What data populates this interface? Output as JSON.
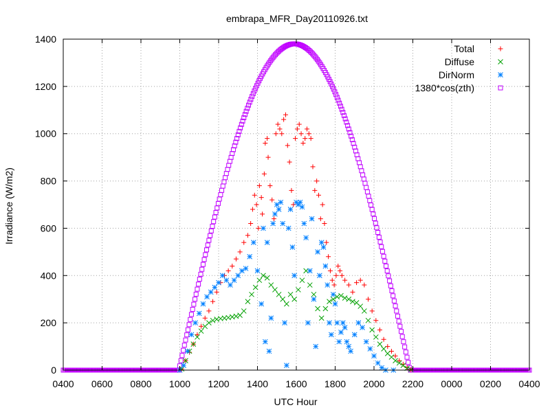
{
  "chart_data": {
    "type": "scatter",
    "title": "embrapa_MFR_Day20110926.txt",
    "xlabel": "UTC Hour",
    "ylabel": "Irradiance (W/m2)",
    "xlim": [
      0,
      24
    ],
    "ylim": [
      0,
      1400
    ],
    "x_ticks": [
      {
        "pos": 0,
        "label": "0400"
      },
      {
        "pos": 2,
        "label": "0600"
      },
      {
        "pos": 4,
        "label": "0800"
      },
      {
        "pos": 6,
        "label": "1000"
      },
      {
        "pos": 8,
        "label": "1200"
      },
      {
        "pos": 10,
        "label": "1400"
      },
      {
        "pos": 12,
        "label": "1600"
      },
      {
        "pos": 14,
        "label": "1800"
      },
      {
        "pos": 16,
        "label": "2000"
      },
      {
        "pos": 18,
        "label": "2200"
      },
      {
        "pos": 20,
        "label": "0000"
      },
      {
        "pos": 22,
        "label": "0200"
      },
      {
        "pos": 24,
        "label": "0400"
      }
    ],
    "y_ticks": [
      0,
      200,
      400,
      600,
      800,
      1000,
      1200,
      1400
    ],
    "grid": true,
    "legend_position": "top-right",
    "series": [
      {
        "name": "Total",
        "color": "#ff0000",
        "marker": "plus",
        "points": [
          [
            6.1,
            5
          ],
          [
            6.3,
            40
          ],
          [
            6.5,
            75
          ],
          [
            6.7,
            110
          ],
          [
            6.9,
            150
          ],
          [
            7.1,
            185
          ],
          [
            7.3,
            220
          ],
          [
            7.5,
            250
          ],
          [
            7.7,
            290
          ],
          [
            7.9,
            330
          ],
          [
            8.1,
            370
          ],
          [
            8.3,
            400
          ],
          [
            8.5,
            420
          ],
          [
            8.7,
            440
          ],
          [
            8.9,
            470
          ],
          [
            9.1,
            500
          ],
          [
            9.3,
            540
          ],
          [
            9.5,
            570
          ],
          [
            9.65,
            620
          ],
          [
            9.75,
            680
          ],
          [
            9.85,
            740
          ],
          [
            9.95,
            700
          ],
          [
            10.05,
            600
          ],
          [
            10.1,
            780
          ],
          [
            10.2,
            730
          ],
          [
            10.25,
            660
          ],
          [
            10.35,
            830
          ],
          [
            10.4,
            960
          ],
          [
            10.5,
            980
          ],
          [
            10.55,
            900
          ],
          [
            10.65,
            780
          ],
          [
            10.75,
            720
          ],
          [
            10.85,
            640
          ],
          [
            10.95,
            1000
          ],
          [
            11.05,
            1040
          ],
          [
            11.15,
            1020
          ],
          [
            11.25,
            1000
          ],
          [
            11.35,
            1060
          ],
          [
            11.45,
            1080
          ],
          [
            11.55,
            950
          ],
          [
            11.65,
            880
          ],
          [
            11.75,
            760
          ],
          [
            11.85,
            700
          ],
          [
            11.95,
            980
          ],
          [
            12.05,
            1020
          ],
          [
            12.15,
            1040
          ],
          [
            12.25,
            1000
          ],
          [
            12.35,
            960
          ],
          [
            12.45,
            980
          ],
          [
            12.55,
            1020
          ],
          [
            12.65,
            1000
          ],
          [
            12.75,
            980
          ],
          [
            12.85,
            860
          ],
          [
            12.95,
            760
          ],
          [
            13.05,
            800
          ],
          [
            13.15,
            740
          ],
          [
            13.25,
            640
          ],
          [
            13.35,
            700
          ],
          [
            13.45,
            620
          ],
          [
            13.55,
            540
          ],
          [
            13.65,
            480
          ],
          [
            13.75,
            420
          ],
          [
            13.85,
            380
          ],
          [
            13.95,
            360
          ],
          [
            14.05,
            400
          ],
          [
            14.15,
            440
          ],
          [
            14.25,
            420
          ],
          [
            14.35,
            400
          ],
          [
            14.5,
            380
          ],
          [
            14.7,
            360
          ],
          [
            14.9,
            330
          ],
          [
            15.1,
            370
          ],
          [
            15.3,
            380
          ],
          [
            15.5,
            360
          ],
          [
            15.7,
            300
          ],
          [
            15.9,
            250
          ],
          [
            16.1,
            210
          ],
          [
            16.3,
            170
          ],
          [
            16.5,
            130
          ],
          [
            16.7,
            100
          ],
          [
            16.9,
            80
          ],
          [
            17.1,
            60
          ],
          [
            17.3,
            40
          ],
          [
            17.5,
            25
          ],
          [
            17.7,
            10
          ],
          [
            17.9,
            2
          ]
        ]
      },
      {
        "name": "Diffuse",
        "color": "#00a000",
        "marker": "cross",
        "points": [
          [
            6.1,
            5
          ],
          [
            6.3,
            40
          ],
          [
            6.5,
            80
          ],
          [
            6.7,
            110
          ],
          [
            6.9,
            140
          ],
          [
            7.1,
            165
          ],
          [
            7.3,
            185
          ],
          [
            7.5,
            200
          ],
          [
            7.7,
            210
          ],
          [
            7.9,
            215
          ],
          [
            8.1,
            218
          ],
          [
            8.3,
            220
          ],
          [
            8.5,
            222
          ],
          [
            8.7,
            225
          ],
          [
            8.9,
            228
          ],
          [
            9.1,
            232
          ],
          [
            9.3,
            250
          ],
          [
            9.5,
            290
          ],
          [
            9.7,
            320
          ],
          [
            9.9,
            350
          ],
          [
            10.1,
            380
          ],
          [
            10.3,
            400
          ],
          [
            10.5,
            390
          ],
          [
            10.7,
            360
          ],
          [
            10.9,
            340
          ],
          [
            11.1,
            320
          ],
          [
            11.3,
            300
          ],
          [
            11.5,
            280
          ],
          [
            11.7,
            320
          ],
          [
            11.9,
            300
          ],
          [
            12.1,
            340
          ],
          [
            12.3,
            380
          ],
          [
            12.5,
            420
          ],
          [
            12.7,
            360
          ],
          [
            12.9,
            320
          ],
          [
            13.1,
            260
          ],
          [
            13.3,
            220
          ],
          [
            13.5,
            260
          ],
          [
            13.7,
            290
          ],
          [
            13.9,
            300
          ],
          [
            14.1,
            310
          ],
          [
            14.3,
            315
          ],
          [
            14.5,
            305
          ],
          [
            14.7,
            300
          ],
          [
            14.9,
            290
          ],
          [
            15.1,
            285
          ],
          [
            15.3,
            270
          ],
          [
            15.5,
            250
          ],
          [
            15.7,
            210
          ],
          [
            15.9,
            170
          ],
          [
            16.1,
            140
          ],
          [
            16.3,
            110
          ],
          [
            16.5,
            90
          ],
          [
            16.7,
            70
          ],
          [
            16.9,
            55
          ],
          [
            17.1,
            40
          ],
          [
            17.3,
            30
          ],
          [
            17.5,
            20
          ],
          [
            17.7,
            8
          ],
          [
            17.9,
            2
          ]
        ]
      },
      {
        "name": "DirNorm",
        "color": "#0080ff",
        "marker": "star",
        "points": [
          [
            6.0,
            0
          ],
          [
            6.2,
            20
          ],
          [
            6.4,
            80
          ],
          [
            6.6,
            150
          ],
          [
            6.8,
            200
          ],
          [
            7.0,
            240
          ],
          [
            7.2,
            280
          ],
          [
            7.4,
            310
          ],
          [
            7.6,
            330
          ],
          [
            7.8,
            350
          ],
          [
            8.0,
            370
          ],
          [
            8.2,
            400
          ],
          [
            8.4,
            380
          ],
          [
            8.6,
            360
          ],
          [
            8.8,
            380
          ],
          [
            9.0,
            400
          ],
          [
            9.2,
            420
          ],
          [
            9.4,
            430
          ],
          [
            9.6,
            480
          ],
          [
            9.8,
            540
          ],
          [
            10.0,
            420
          ],
          [
            10.2,
            280
          ],
          [
            10.3,
            600
          ],
          [
            10.4,
            120
          ],
          [
            10.5,
            540
          ],
          [
            10.6,
            80
          ],
          [
            10.7,
            220
          ],
          [
            10.8,
            620
          ],
          [
            10.9,
            660
          ],
          [
            11.0,
            700
          ],
          [
            11.1,
            680
          ],
          [
            11.2,
            710
          ],
          [
            11.3,
            620
          ],
          [
            11.4,
            200
          ],
          [
            11.5,
            20
          ],
          [
            11.6,
            600
          ],
          [
            11.7,
            680
          ],
          [
            11.8,
            520
          ],
          [
            11.9,
            400
          ],
          [
            12.0,
            710
          ],
          [
            12.1,
            700
          ],
          [
            12.2,
            710
          ],
          [
            12.3,
            690
          ],
          [
            12.4,
            620
          ],
          [
            12.5,
            560
          ],
          [
            12.6,
            200
          ],
          [
            12.7,
            420
          ],
          [
            12.8,
            640
          ],
          [
            12.9,
            300
          ],
          [
            13.0,
            100
          ],
          [
            13.1,
            500
          ],
          [
            13.2,
            400
          ],
          [
            13.3,
            540
          ],
          [
            13.4,
            520
          ],
          [
            13.5,
            440
          ],
          [
            13.6,
            360
          ],
          [
            13.7,
            200
          ],
          [
            13.8,
            150
          ],
          [
            13.9,
            320
          ],
          [
            14.0,
            280
          ],
          [
            14.1,
            200
          ],
          [
            14.2,
            120
          ],
          [
            14.3,
            160
          ],
          [
            14.4,
            200
          ],
          [
            14.5,
            180
          ],
          [
            14.6,
            120
          ],
          [
            14.7,
            100
          ],
          [
            14.8,
            80
          ],
          [
            15.0,
            150
          ],
          [
            15.2,
            200
          ],
          [
            15.4,
            180
          ],
          [
            15.6,
            120
          ],
          [
            15.8,
            90
          ],
          [
            16.0,
            60
          ],
          [
            16.2,
            30
          ],
          [
            16.4,
            10
          ],
          [
            16.6,
            0
          ],
          [
            17.0,
            0
          ]
        ]
      },
      {
        "name": "1380*cos(zth)",
        "color": "#c000ff",
        "marker": "square",
        "curve": {
          "sunrise": 5.95,
          "noon": 11.9,
          "sunset": 17.85,
          "peak": 1380
        }
      }
    ]
  }
}
